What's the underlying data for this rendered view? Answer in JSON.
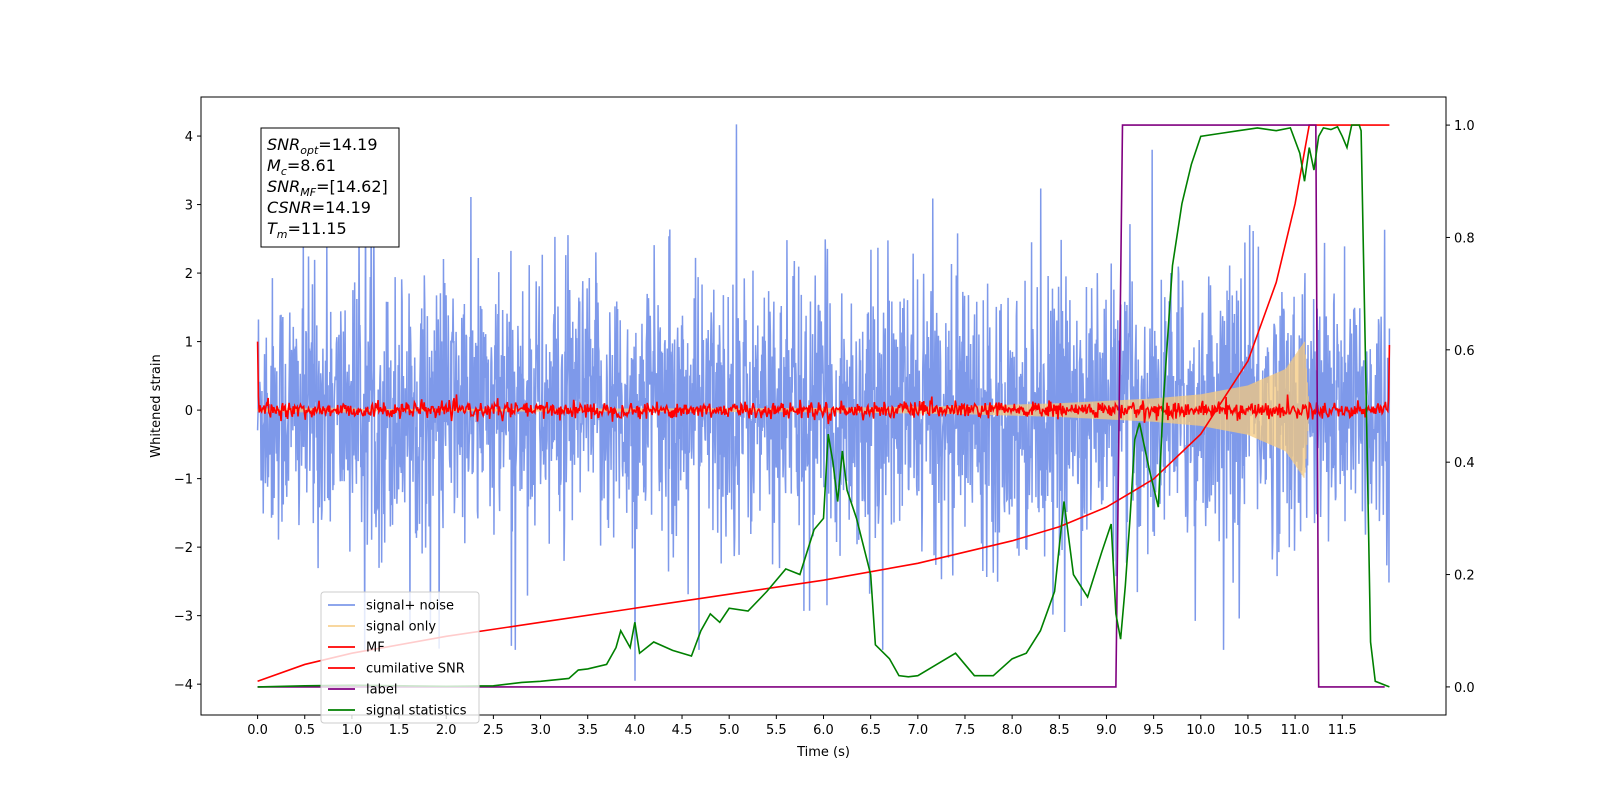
{
  "chart_data": {
    "type": "line",
    "xlabel": "Time (s)",
    "ylabel": "Whitened strain",
    "xlim": [
      -0.6,
      12.6
    ],
    "ylim": [
      -4.45,
      4.57
    ],
    "ylim_right": [
      -0.05,
      1.05
    ],
    "x_ticks": [
      0.0,
      0.5,
      1.0,
      1.5,
      2.0,
      2.5,
      3.0,
      3.5,
      4.0,
      4.5,
      5.0,
      5.5,
      6.0,
      6.5,
      7.0,
      7.5,
      8.0,
      8.5,
      9.0,
      9.5,
      10.0,
      10.5,
      11.0,
      11.5
    ],
    "x_tick_labels": [
      "0.0",
      "0.5",
      "1.0",
      "1.5",
      "2.0",
      "2.5",
      "3.0",
      "3.5",
      "4.0",
      "4.5",
      "5.0",
      "5.5",
      "6.0",
      "6.5",
      "7.0",
      "7.5",
      "8.0",
      "8.5",
      "9.0",
      "9.5",
      "10.0",
      "10.5",
      "11.0",
      "11.5"
    ],
    "y_ticks": [
      -4,
      -3,
      -2,
      -1,
      0,
      1,
      2,
      3,
      4
    ],
    "y_tick_labels": [
      "−4",
      "−3",
      "−2",
      "−1",
      "0",
      "1",
      "2",
      "3",
      "4"
    ],
    "y_ticks_right": [
      0.0,
      0.2,
      0.4,
      0.6,
      0.8,
      1.0
    ],
    "y_tick_labels_right": [
      "0.0",
      "0.2",
      "0.4",
      "0.6",
      "0.8",
      "1.0"
    ],
    "grid": false,
    "legend_position": "lower-left",
    "info_box": [
      {
        "sym": "SNR",
        "sub": "opt",
        "value": "=14.19"
      },
      {
        "sym": "M",
        "sub": "c",
        "value": "=8.61"
      },
      {
        "sym": "SNR",
        "sub": "MF",
        "value": "=[14.62]"
      },
      {
        "sym": "CSNR",
        "sub": "",
        "value": "=14.19"
      },
      {
        "sym": "T",
        "sub": "m",
        "value": "=11.15"
      }
    ],
    "series": [
      {
        "name": "signal+ noise",
        "color": "#7390e8",
        "axis": "left",
        "kind": "noise",
        "t_range": [
          0,
          12.0
        ],
        "typical_envelope": 1.2,
        "peak_max": 4.17,
        "peak_min": -3.95
      },
      {
        "name": "signal only",
        "color": "#f5c97e",
        "axis": "left",
        "kind": "chirp",
        "t_range": [
          0,
          11.15
        ],
        "envelope": {
          "t": [
            0,
            6.0,
            7.5,
            8.5,
            9.5,
            10.0,
            10.5,
            10.9,
            11.1,
            11.15
          ],
          "amp": [
            0.01,
            0.03,
            0.06,
            0.1,
            0.17,
            0.23,
            0.36,
            0.6,
            1.0,
            0
          ]
        }
      },
      {
        "name": "MF",
        "color": "#ff0000",
        "axis": "left",
        "kind": "mf",
        "t_range": [
          0,
          12.0
        ],
        "start": 1.0,
        "end": 0.95,
        "jitter": 0.06
      },
      {
        "name": "cumilative SNR",
        "color": "#ff0000",
        "axis": "right",
        "points": [
          [
            0,
            0.01
          ],
          [
            0.5,
            0.04
          ],
          [
            1.0,
            0.06
          ],
          [
            2.0,
            0.09
          ],
          [
            3.0,
            0.115
          ],
          [
            4.0,
            0.14
          ],
          [
            5.0,
            0.165
          ],
          [
            6.0,
            0.19
          ],
          [
            7.0,
            0.22
          ],
          [
            8.0,
            0.26
          ],
          [
            8.5,
            0.285
          ],
          [
            9.0,
            0.32
          ],
          [
            9.5,
            0.37
          ],
          [
            10.0,
            0.45
          ],
          [
            10.5,
            0.58
          ],
          [
            10.8,
            0.72
          ],
          [
            11.0,
            0.86
          ],
          [
            11.15,
            1.0
          ],
          [
            11.5,
            1.0
          ],
          [
            12.0,
            1.0
          ]
        ]
      },
      {
        "name": "label",
        "color": "#800080",
        "axis": "right",
        "points": [
          [
            0,
            0.0
          ],
          [
            9.1,
            0.0
          ],
          [
            9.17,
            1.0
          ],
          [
            11.22,
            1.0
          ],
          [
            11.25,
            0.0
          ],
          [
            11.95,
            0.0
          ]
        ]
      },
      {
        "name": "signal statistics",
        "color": "#008000",
        "axis": "right",
        "points": [
          [
            0,
            0.0
          ],
          [
            0.5,
            0.002
          ],
          [
            1.0,
            0.003
          ],
          [
            2.0,
            0.001
          ],
          [
            2.5,
            0.002
          ],
          [
            2.8,
            0.008
          ],
          [
            3.0,
            0.01
          ],
          [
            3.3,
            0.015
          ],
          [
            3.4,
            0.03
          ],
          [
            3.5,
            0.032
          ],
          [
            3.7,
            0.04
          ],
          [
            3.8,
            0.07
          ],
          [
            3.85,
            0.1
          ],
          [
            3.95,
            0.07
          ],
          [
            4.0,
            0.115
          ],
          [
            4.05,
            0.06
          ],
          [
            4.2,
            0.08
          ],
          [
            4.4,
            0.065
          ],
          [
            4.6,
            0.055
          ],
          [
            4.7,
            0.1
          ],
          [
            4.8,
            0.13
          ],
          [
            4.9,
            0.115
          ],
          [
            5.0,
            0.14
          ],
          [
            5.2,
            0.135
          ],
          [
            5.4,
            0.17
          ],
          [
            5.6,
            0.21
          ],
          [
            5.75,
            0.2
          ],
          [
            5.9,
            0.28
          ],
          [
            6.0,
            0.3
          ],
          [
            6.05,
            0.45
          ],
          [
            6.1,
            0.4
          ],
          [
            6.15,
            0.33
          ],
          [
            6.2,
            0.42
          ],
          [
            6.25,
            0.35
          ],
          [
            6.35,
            0.3
          ],
          [
            6.5,
            0.2
          ],
          [
            6.55,
            0.075
          ],
          [
            6.7,
            0.05
          ],
          [
            6.8,
            0.02
          ],
          [
            6.9,
            0.018
          ],
          [
            7.0,
            0.02
          ],
          [
            7.2,
            0.04
          ],
          [
            7.4,
            0.06
          ],
          [
            7.6,
            0.02
          ],
          [
            7.8,
            0.02
          ],
          [
            8.0,
            0.05
          ],
          [
            8.15,
            0.06
          ],
          [
            8.3,
            0.1
          ],
          [
            8.45,
            0.17
          ],
          [
            8.55,
            0.33
          ],
          [
            8.65,
            0.2
          ],
          [
            8.8,
            0.16
          ],
          [
            8.95,
            0.24
          ],
          [
            9.05,
            0.29
          ],
          [
            9.1,
            0.13
          ],
          [
            9.15,
            0.085
          ],
          [
            9.2,
            0.18
          ],
          [
            9.25,
            0.3
          ],
          [
            9.3,
            0.44
          ],
          [
            9.35,
            0.47
          ],
          [
            9.45,
            0.39
          ],
          [
            9.55,
            0.32
          ],
          [
            9.6,
            0.5
          ],
          [
            9.7,
            0.75
          ],
          [
            9.8,
            0.86
          ],
          [
            9.9,
            0.93
          ],
          [
            10.0,
            0.98
          ],
          [
            10.2,
            0.985
          ],
          [
            10.4,
            0.99
          ],
          [
            10.6,
            0.995
          ],
          [
            10.8,
            0.99
          ],
          [
            10.95,
            0.995
          ],
          [
            11.05,
            0.95
          ],
          [
            11.1,
            0.9
          ],
          [
            11.15,
            0.96
          ],
          [
            11.2,
            0.92
          ],
          [
            11.25,
            0.98
          ],
          [
            11.3,
            0.995
          ],
          [
            11.38,
            0.992
          ],
          [
            11.45,
            0.997
          ],
          [
            11.5,
            0.98
          ],
          [
            11.55,
            0.96
          ],
          [
            11.6,
            1.0
          ],
          [
            11.68,
            1.0
          ],
          [
            11.7,
            0.99
          ],
          [
            11.75,
            0.55
          ],
          [
            11.8,
            0.08
          ],
          [
            11.85,
            0.01
          ],
          [
            12.0,
            0.0
          ]
        ]
      }
    ]
  }
}
